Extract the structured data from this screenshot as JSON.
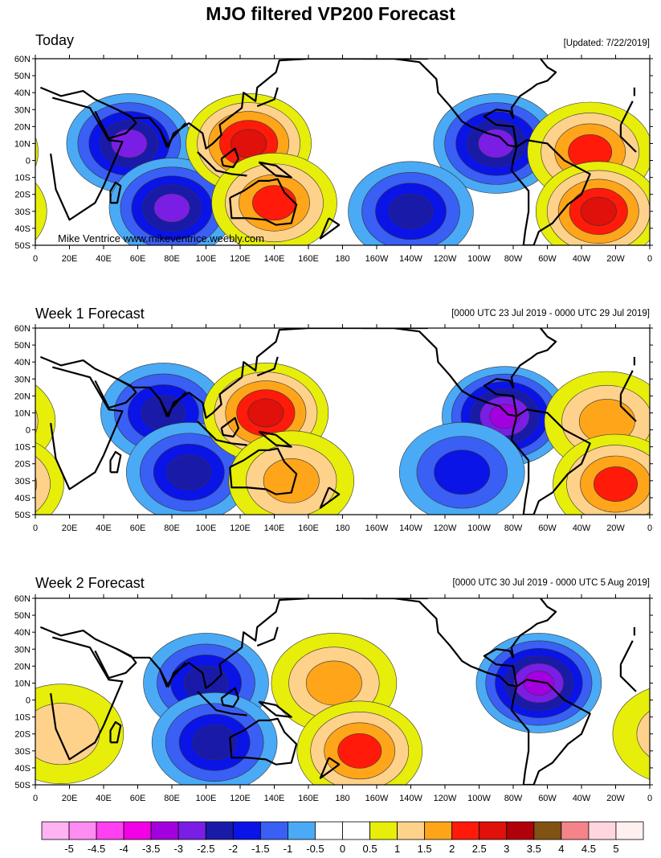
{
  "title": "MJO filtered VP200 Forecast",
  "credit": "Mike Ventrice www.mikeventrice.weebly.com",
  "panels": [
    {
      "title": "Today",
      "subtitle": "[Updated: 7/22/2019]"
    },
    {
      "title": "Week 1 Forecast",
      "subtitle": "[0000 UTC 23 Jul 2019 - 0000 UTC 29 Jul 2019]"
    },
    {
      "title": "Week 2 Forecast",
      "subtitle": "[0000 UTC 30 Jul 2019 - 0000 UTC 5 Aug 2019]"
    }
  ],
  "lat_ticks": [
    "60N",
    "50N",
    "40N",
    "30N",
    "20N",
    "10N",
    "0",
    "10S",
    "20S",
    "30S",
    "40S",
    "50S"
  ],
  "lon_ticks": [
    "0",
    "20E",
    "40E",
    "60E",
    "80E",
    "100E",
    "120E",
    "140E",
    "160E",
    "180",
    "160W",
    "140W",
    "120W",
    "100W",
    "80W",
    "60W",
    "40W",
    "20W",
    "0"
  ],
  "colorbar": {
    "labels": [
      "-5",
      "-4.5",
      "-4",
      "-3.5",
      "-3",
      "-2.5",
      "-2",
      "-1.5",
      "-1",
      "-0.5",
      "0",
      "0.5",
      "1",
      "1.5",
      "2",
      "2.5",
      "3",
      "3.5",
      "4",
      "4.5",
      "5"
    ],
    "colors": [
      "#ffb3f2",
      "#ff8cf2",
      "#ff40f2",
      "#f200e6",
      "#a300e0",
      "#7a1ee6",
      "#1a1aa8",
      "#0a14e6",
      "#3a5ff5",
      "#4aaaf5",
      "#ffffff",
      "#ffffff",
      "#e6ee0a",
      "#ffd28c",
      "#ffa51a",
      "#ff1a0a",
      "#e0100a",
      "#b0000a",
      "#805214",
      "#f5848a",
      "#ffd6e0",
      "#fff0f0"
    ]
  },
  "chart_data": [
    {
      "type": "heatmap",
      "panel": "Today",
      "field": "MJO filtered VP200",
      "anomalies": [
        {
          "sign": "negative",
          "lon": 55,
          "lat": 10,
          "peak": -2.5
        },
        {
          "sign": "negative",
          "lon": 80,
          "lat": -28,
          "peak": -2.5
        },
        {
          "sign": "positive",
          "lon": 125,
          "lat": 10,
          "peak": 2.5
        },
        {
          "sign": "positive",
          "lon": 140,
          "lat": -25,
          "peak": 2.0
        },
        {
          "sign": "negative",
          "lon": -90,
          "lat": 10,
          "peak": -2.5
        },
        {
          "sign": "negative",
          "lon": -140,
          "lat": -30,
          "peak": -2.0
        },
        {
          "sign": "positive",
          "lon": -35,
          "lat": 5,
          "peak": 2.0
        },
        {
          "sign": "positive",
          "lon": -30,
          "lat": -30,
          "peak": 2.5
        }
      ]
    },
    {
      "type": "heatmap",
      "panel": "Week 1 Forecast",
      "field": "MJO filtered VP200",
      "anomalies": [
        {
          "sign": "negative",
          "lon": 75,
          "lat": 10,
          "peak": -2.0
        },
        {
          "sign": "negative",
          "lon": 90,
          "lat": -25,
          "peak": -2.0
        },
        {
          "sign": "positive",
          "lon": 135,
          "lat": 10,
          "peak": 2.5
        },
        {
          "sign": "positive",
          "lon": 150,
          "lat": -30,
          "peak": 1.5
        },
        {
          "sign": "negative",
          "lon": -85,
          "lat": 8,
          "peak": -3.0
        },
        {
          "sign": "negative",
          "lon": -110,
          "lat": -25,
          "peak": -1.5
        },
        {
          "sign": "positive",
          "lon": -25,
          "lat": 5,
          "peak": 1.5
        },
        {
          "sign": "positive",
          "lon": -20,
          "lat": -32,
          "peak": 2.0
        }
      ]
    },
    {
      "type": "heatmap",
      "panel": "Week 2 Forecast",
      "field": "MJO filtered VP200",
      "anomalies": [
        {
          "sign": "negative",
          "lon": 100,
          "lat": 10,
          "peak": -2.0
        },
        {
          "sign": "negative",
          "lon": 105,
          "lat": -25,
          "peak": -2.0
        },
        {
          "sign": "positive",
          "lon": 175,
          "lat": 10,
          "peak": 1.5
        },
        {
          "sign": "positive",
          "lon": -170,
          "lat": -30,
          "peak": 2.0
        },
        {
          "sign": "negative",
          "lon": -65,
          "lat": 10,
          "peak": -3.0
        },
        {
          "sign": "positive",
          "lon": 15,
          "lat": -20,
          "peak": 1.0
        }
      ]
    }
  ]
}
